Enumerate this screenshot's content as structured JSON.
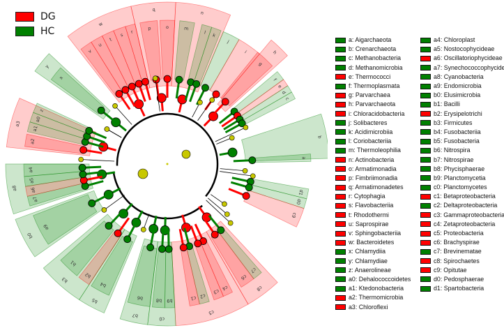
{
  "groups": [
    {
      "name": "DG",
      "color": "#ff0000"
    },
    {
      "name": "HC",
      "color": "#008000"
    }
  ],
  "colors": {
    "DG": "#ff0000",
    "HC": "#008000",
    "nonsig": "#c8c800"
  },
  "taxa": [
    {
      "key": "a",
      "name": "Aigarchaeota",
      "group": "HC"
    },
    {
      "key": "b",
      "name": "Crenarchaeota",
      "group": "HC"
    },
    {
      "key": "c",
      "name": "Methanobacteria",
      "group": "HC"
    },
    {
      "key": "d",
      "name": "Methanomicrobia",
      "group": "HC"
    },
    {
      "key": "e",
      "name": "Thermococci",
      "group": "DG"
    },
    {
      "key": "f",
      "name": "Thermoplasmata",
      "group": "HC"
    },
    {
      "key": "g",
      "name": "Parvarchaea",
      "group": "DG"
    },
    {
      "key": "h",
      "name": "Parvarchaeota",
      "group": "DG"
    },
    {
      "key": "i",
      "name": "Chloracidobacteria",
      "group": "DG"
    },
    {
      "key": "j",
      "name": "Solibacteres",
      "group": "HC"
    },
    {
      "key": "k",
      "name": "Acidimicrobiia",
      "group": "HC"
    },
    {
      "key": "l",
      "name": "Coriobacteriia",
      "group": "HC"
    },
    {
      "key": "m",
      "name": "Thermoleophilia",
      "group": "HC"
    },
    {
      "key": "n",
      "name": "Actinobacteria",
      "group": "DG"
    },
    {
      "key": "o",
      "name": "Armatimonadia",
      "group": "DG"
    },
    {
      "key": "p",
      "name": "Fimbriimonadia",
      "group": "DG"
    },
    {
      "key": "q",
      "name": "Armatimonadetes",
      "group": "DG"
    },
    {
      "key": "r",
      "name": "Cytophagia",
      "group": "DG"
    },
    {
      "key": "s",
      "name": "Flavobacteriia",
      "group": "DG"
    },
    {
      "key": "t",
      "name": "Rhodothermi",
      "group": "DG"
    },
    {
      "key": "u",
      "name": "Saprospirae",
      "group": "DG"
    },
    {
      "key": "v",
      "name": "Sphingobacteriia",
      "group": "DG"
    },
    {
      "key": "w",
      "name": "Bacteroidetes",
      "group": "DG"
    },
    {
      "key": "x",
      "name": "Chlamydiia",
      "group": "HC"
    },
    {
      "key": "y",
      "name": "Chlamydiae",
      "group": "HC"
    },
    {
      "key": "z",
      "name": "Anaerolineae",
      "group": "HC"
    },
    {
      "key": "a0",
      "name": "Dehalococcoidetes",
      "group": "HC"
    },
    {
      "key": "a1",
      "name": "Ktedonobacteria",
      "group": "HC"
    },
    {
      "key": "a2",
      "name": "Thermomicrobia",
      "group": "DG"
    },
    {
      "key": "a3",
      "name": "Chloroflexi",
      "group": "DG"
    },
    {
      "key": "a4",
      "name": "Chloroplast",
      "group": "HC"
    },
    {
      "key": "a5",
      "name": "Nostocophycideae",
      "group": "HC"
    },
    {
      "key": "a6",
      "name": "Oscillatoriophycideae",
      "group": "DG"
    },
    {
      "key": "a7",
      "name": "Synechococcophycideae",
      "group": "HC"
    },
    {
      "key": "a8",
      "name": "Cyanobacteria",
      "group": "HC"
    },
    {
      "key": "a9",
      "name": "Endomicrobia",
      "group": "HC"
    },
    {
      "key": "b0",
      "name": "Elusimicrobia",
      "group": "HC"
    },
    {
      "key": "b1",
      "name": "Bacilli",
      "group": "HC"
    },
    {
      "key": "b2",
      "name": "Erysipelotrichi",
      "group": "DG"
    },
    {
      "key": "b3",
      "name": "Firmicutes",
      "group": "HC"
    },
    {
      "key": "b4",
      "name": "Fusobacteriia",
      "group": "HC"
    },
    {
      "key": "b5",
      "name": "Fusobacteria",
      "group": "HC"
    },
    {
      "key": "b6",
      "name": "Nitrospira",
      "group": "HC"
    },
    {
      "key": "b7",
      "name": "Nitrospirae",
      "group": "HC"
    },
    {
      "key": "b8",
      "name": "Phycisphaerae",
      "group": "HC"
    },
    {
      "key": "b9",
      "name": "Planctomycetia",
      "group": "HC"
    },
    {
      "key": "c0",
      "name": "Planctomycetes",
      "group": "HC"
    },
    {
      "key": "c1",
      "name": "Betaproteobacteria",
      "group": "DG"
    },
    {
      "key": "c2",
      "name": "Deltaproteobacteria",
      "group": "HC"
    },
    {
      "key": "c3",
      "name": "Gammaproteobacteria",
      "group": "DG"
    },
    {
      "key": "c4",
      "name": "Zetaproteobacteria",
      "group": "DG"
    },
    {
      "key": "c5",
      "name": "Proteobacteria",
      "group": "DG"
    },
    {
      "key": "c6",
      "name": "Brachyspirae",
      "group": "DG"
    },
    {
      "key": "c7",
      "name": "Brevinematae",
      "group": "HC"
    },
    {
      "key": "c8",
      "name": "Spirochaetes",
      "group": "DG"
    },
    {
      "key": "c9",
      "name": "Opitutae",
      "group": "DG"
    },
    {
      "key": "d0",
      "name": "Pedosphaerae",
      "group": "HC"
    },
    {
      "key": "d1",
      "name": "Spartobacteria",
      "group": "HC"
    }
  ]
}
